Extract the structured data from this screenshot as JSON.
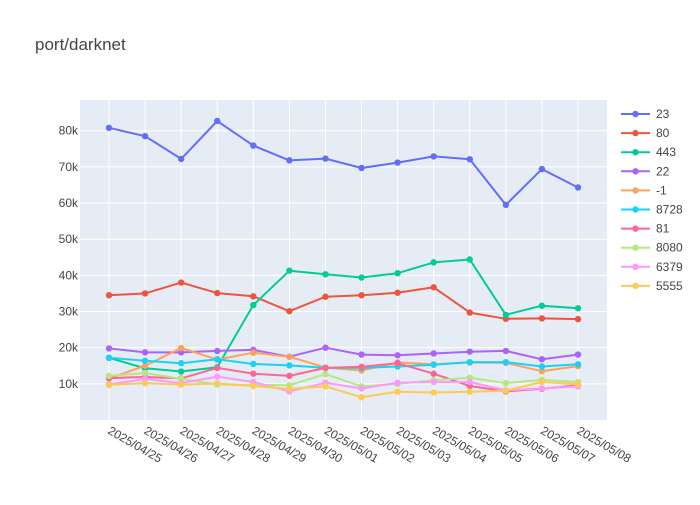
{
  "chart_data": {
    "type": "line",
    "title": "port/darknet",
    "xlabel": "",
    "ylabel": "",
    "x": [
      "2025/04/25",
      "2025/04/26",
      "2025/04/27",
      "2025/04/28",
      "2025/04/29",
      "2025/04/30",
      "2025/05/01",
      "2025/05/02",
      "2025/05/03",
      "2025/05/04",
      "2025/05/05",
      "2025/05/06",
      "2025/05/07",
      "2025/05/08"
    ],
    "ylim": [
      0,
      88500
    ],
    "yticks": [
      10000,
      20000,
      30000,
      40000,
      50000,
      60000,
      70000,
      80000
    ],
    "ytick_labels": [
      "10k",
      "20k",
      "30k",
      "40k",
      "50k",
      "60k",
      "70k",
      "80k"
    ],
    "grid": true,
    "legend_position": "right",
    "plot_bg": "#E5ECF6",
    "series": [
      {
        "name": "23",
        "color": "#636EFA",
        "values": [
          80800,
          78500,
          72200,
          82700,
          75900,
          71800,
          72300,
          69700,
          71200,
          72900,
          72100,
          59500,
          69400,
          64300
        ]
      },
      {
        "name": "80",
        "color": "#EF553B",
        "values": [
          34500,
          35000,
          38000,
          35100,
          34200,
          30100,
          34100,
          34500,
          35200,
          36700,
          29700,
          28000,
          28100,
          27900
        ]
      },
      {
        "name": "443",
        "color": "#00CC96",
        "values": [
          17200,
          14300,
          13400,
          14600,
          31800,
          41300,
          40300,
          39400,
          40600,
          43600,
          44400,
          29100,
          31600,
          30900
        ]
      },
      {
        "name": "22",
        "color": "#AB63FA",
        "values": [
          19800,
          18700,
          18700,
          19100,
          19400,
          17500,
          20000,
          18100,
          17900,
          18400,
          18900,
          19100,
          16800,
          18100
        ]
      },
      {
        "name": "-1",
        "color": "#FFA15A",
        "values": [
          11500,
          15000,
          19900,
          16700,
          18600,
          17500,
          14500,
          13700,
          15900,
          15400,
          15900,
          15800,
          13500,
          14900
        ]
      },
      {
        "name": "8728",
        "color": "#19D3F3",
        "values": [
          17200,
          16400,
          15700,
          16800,
          15500,
          15100,
          14400,
          14400,
          14800,
          15300,
          16000,
          16000,
          14800,
          15400
        ]
      },
      {
        "name": "81",
        "color": "#FF6692",
        "values": [
          11600,
          11900,
          11500,
          14400,
          12800,
          12200,
          14400,
          14700,
          15700,
          12800,
          9400,
          7900,
          8600,
          9600
        ]
      },
      {
        "name": "8080",
        "color": "#B6E880",
        "values": [
          12200,
          13000,
          11400,
          9800,
          9700,
          9600,
          12700,
          9300,
          10000,
          11000,
          11700,
          10200,
          11100,
          10500
        ]
      },
      {
        "name": "6379",
        "color": "#FF97FF",
        "values": [
          9800,
          11400,
          10200,
          12000,
          10500,
          7900,
          10300,
          8700,
          10300,
          10500,
          10500,
          8200,
          8700,
          9300
        ]
      },
      {
        "name": "5555",
        "color": "#FECB52",
        "values": [
          9700,
          10200,
          9800,
          10100,
          9400,
          8600,
          9300,
          6300,
          7800,
          7600,
          7800,
          8100,
          10500,
          9900
        ]
      }
    ]
  }
}
